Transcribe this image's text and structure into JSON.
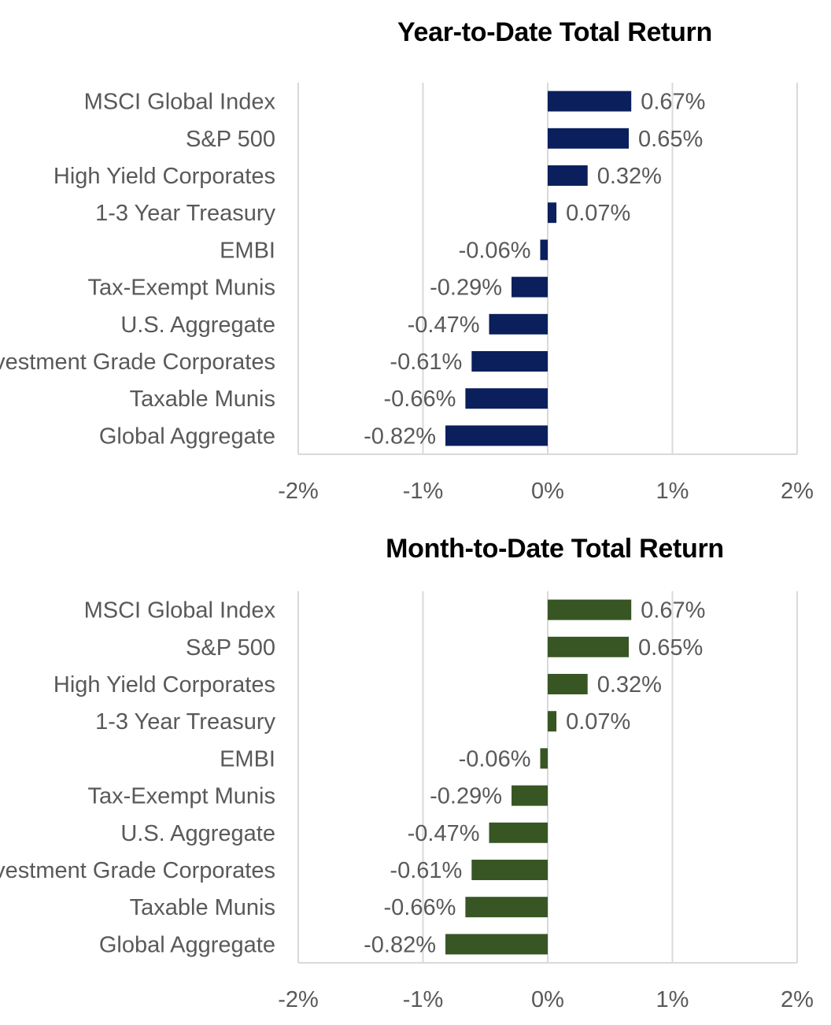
{
  "chart_data": [
    {
      "type": "bar",
      "orientation": "horizontal",
      "title": "Year-to-Date Total Return",
      "categories": [
        "MSCI Global Index",
        "S&P 500",
        "High Yield Corporates",
        "1-3 Year Treasury",
        "EMBI",
        "Tax-Exempt Munis",
        "U.S. Aggregate",
        "Investment Grade Corporates",
        "Taxable Munis",
        "Global Aggregate"
      ],
      "values": [
        0.67,
        0.65,
        0.32,
        0.07,
        -0.06,
        -0.29,
        -0.47,
        -0.61,
        -0.66,
        -0.82
      ],
      "value_labels": [
        "0.67%",
        "0.65%",
        "0.32%",
        "0.07%",
        "-0.06%",
        "-0.29%",
        "-0.47%",
        "-0.61%",
        "-0.66%",
        "-0.82%"
      ],
      "xlim": [
        -2,
        2
      ],
      "x_ticks": [
        -2,
        -1,
        0,
        1,
        2
      ],
      "x_tick_labels": [
        "-2%",
        "-1%",
        "0%",
        "1%",
        "2%"
      ],
      "grid": true,
      "bar_color": "#0a1f5c"
    },
    {
      "type": "bar",
      "orientation": "horizontal",
      "title": "Month-to-Date Total Return",
      "categories": [
        "MSCI Global Index",
        "S&P 500",
        "High Yield Corporates",
        "1-3 Year Treasury",
        "EMBI",
        "Tax-Exempt Munis",
        "U.S. Aggregate",
        "Investment Grade Corporates",
        "Taxable Munis",
        "Global Aggregate"
      ],
      "values": [
        0.67,
        0.65,
        0.32,
        0.07,
        -0.06,
        -0.29,
        -0.47,
        -0.61,
        -0.66,
        -0.82
      ],
      "value_labels": [
        "0.67%",
        "0.65%",
        "0.32%",
        "0.07%",
        "-0.06%",
        "-0.29%",
        "-0.47%",
        "-0.61%",
        "-0.66%",
        "-0.82%"
      ],
      "xlim": [
        -2,
        2
      ],
      "x_ticks": [
        -2,
        -1,
        0,
        1,
        2
      ],
      "x_tick_labels": [
        "-2%",
        "-1%",
        "0%",
        "1%",
        "2%"
      ],
      "grid": true,
      "bar_color": "#375623"
    }
  ]
}
